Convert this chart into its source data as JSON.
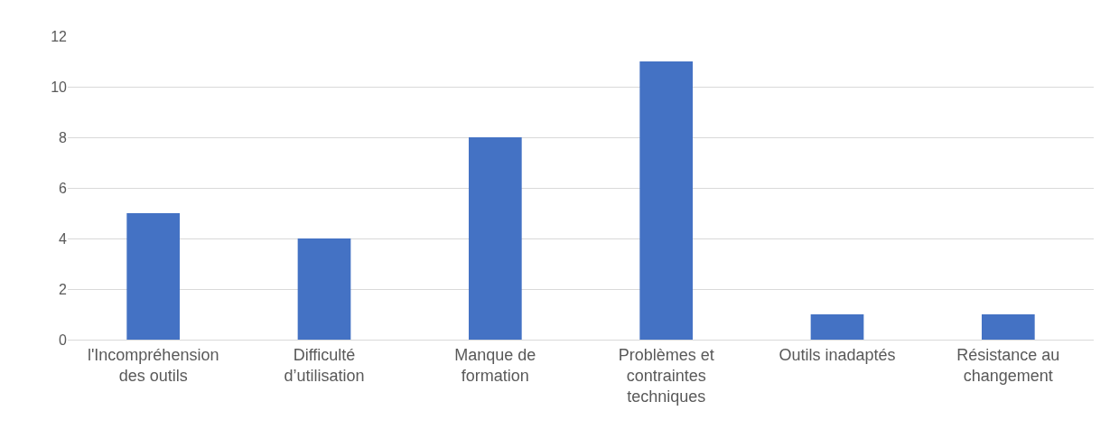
{
  "chart_data": {
    "type": "bar",
    "categories": [
      "l'Incompréhension des outils",
      "Difficulté d’utilisation",
      "Manque de formation",
      "Problèmes et contraintes techniques",
      "Outils inadaptés",
      "Résistance au changement"
    ],
    "values": [
      5,
      4,
      8,
      11,
      1,
      1
    ],
    "color": "#4472c4",
    "ylim": [
      0,
      12
    ],
    "yticks": [
      0,
      2,
      4,
      6,
      8,
      10,
      12
    ],
    "grid": "y"
  }
}
